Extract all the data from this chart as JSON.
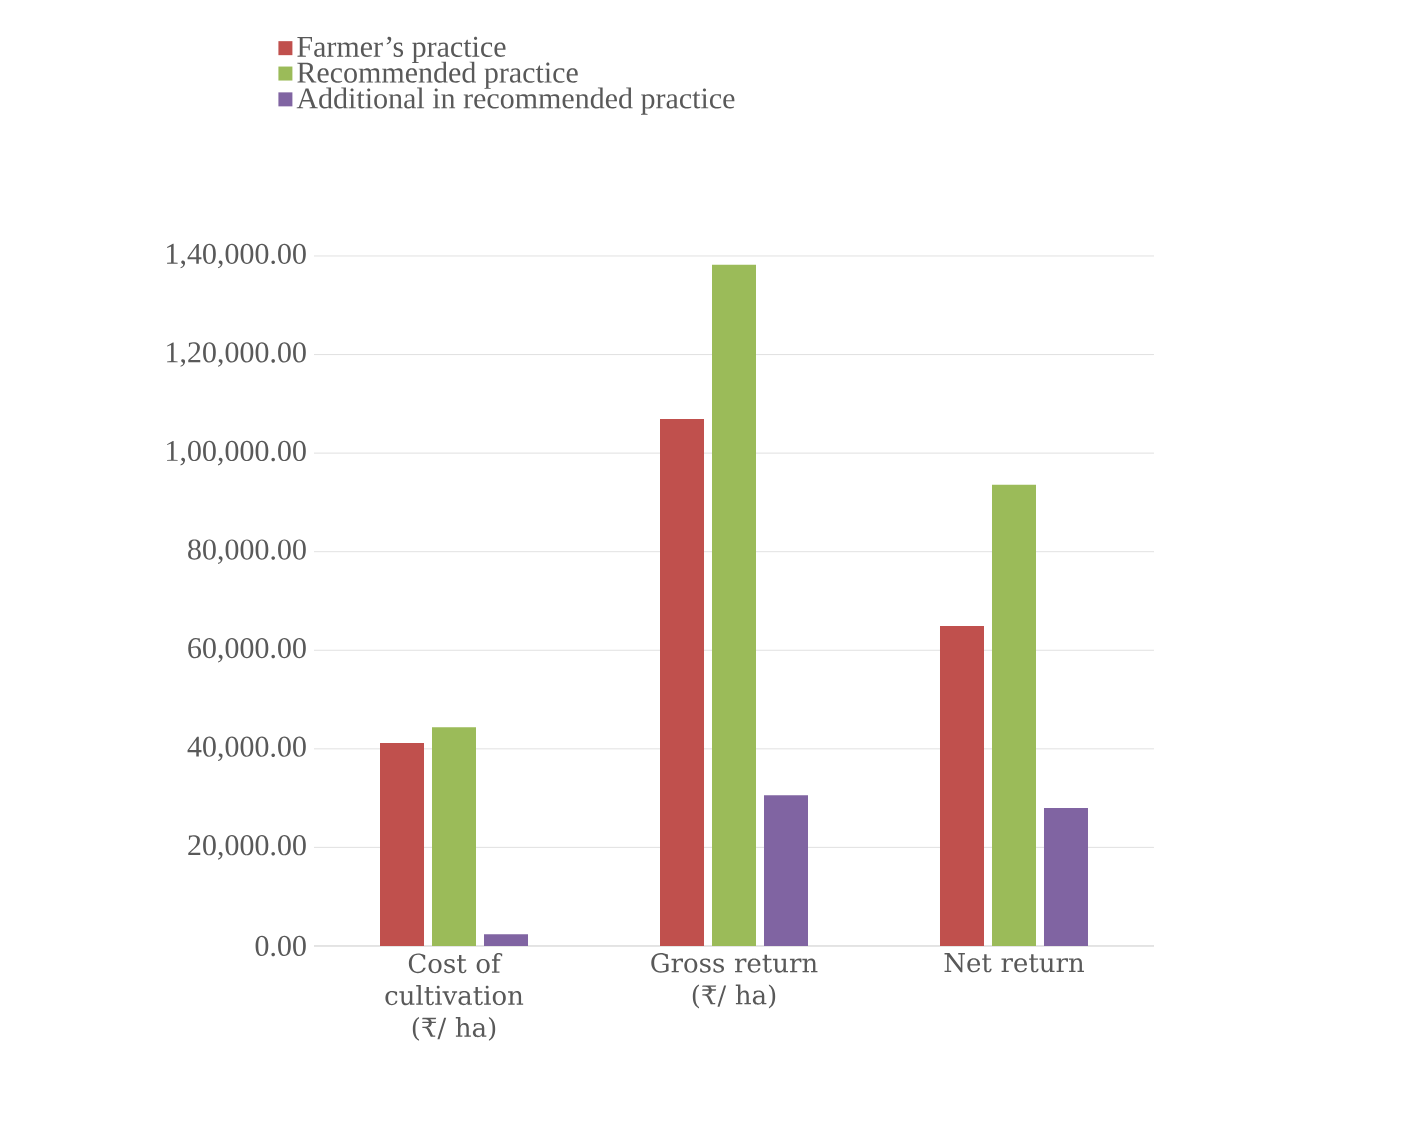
{
  "chart_data": {
    "type": "bar",
    "categories": [
      "Cost of cultivation (₹/ ha)",
      "Gross return (₹/ ha)",
      "Net return"
    ],
    "series": [
      {
        "name": "Farmer’s practice",
        "color": "#c0504d",
        "values": [
          41200,
          106900,
          64900
        ]
      },
      {
        "name": "Recommended practice",
        "color": "#9bbb59",
        "values": [
          44400,
          138200,
          93600
        ]
      },
      {
        "name": "Additional in recommended practice",
        "color": "#8064a2",
        "values": [
          2400,
          30600,
          28000
        ]
      }
    ],
    "ylim": [
      0,
      140000
    ],
    "yticks": [
      {
        "value": 0,
        "label": "0.00"
      },
      {
        "value": 20000,
        "label": "20,000.00"
      },
      {
        "value": 40000,
        "label": "40,000.00"
      },
      {
        "value": 60000,
        "label": "60,000.00"
      },
      {
        "value": 80000,
        "label": "80,000.00"
      },
      {
        "value": 100000,
        "label": "1,00,000.00"
      },
      {
        "value": 120000,
        "label": "1,20,000.00"
      },
      {
        "value": 140000,
        "label": "1,40,000.00"
      }
    ],
    "grid": "y",
    "legend": "top left"
  }
}
